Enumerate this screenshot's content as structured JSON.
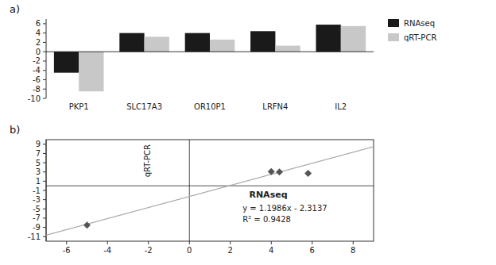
{
  "chart_data": [
    {
      "type": "bar",
      "title": "a)",
      "categories": [
        "PKP1",
        "SLC17A3",
        "OR10P1",
        "LRFN4",
        "IL2"
      ],
      "series": [
        {
          "name": "RNAseq",
          "color": "#1a1a1a",
          "values": [
            -4.5,
            4.0,
            4.0,
            4.4,
            5.8
          ]
        },
        {
          "name": "qRT-PCR",
          "color": "#c8c8c8",
          "values": [
            -8.5,
            3.2,
            2.6,
            1.3,
            5.5
          ]
        }
      ],
      "ylim": [
        -10,
        7
      ],
      "yticks": [
        -10,
        -8,
        -6,
        -4,
        -2,
        0,
        2,
        4,
        6
      ],
      "legend": "right"
    },
    {
      "type": "scatter",
      "title": "b)",
      "x_label": "RNAseq",
      "y_label": "qRT-PCR",
      "annotations": [
        "y = 1.1986x - 2.3137",
        "R² = 0.9428"
      ],
      "series": [
        {
          "type": "scatter",
          "color": "#555555",
          "marker": "diamond",
          "x": [
            -5.0,
            4.0,
            4.4,
            5.8
          ],
          "values": [
            -8.5,
            3.1,
            3.0,
            2.7
          ]
        },
        {
          "type": "line",
          "color": "#aaaaaa",
          "x": [
            -7,
            9
          ],
          "values": [
            -10.7039,
            8.4737
          ]
        }
      ],
      "xlim": [
        -7,
        9
      ],
      "ylim": [
        -12,
        10
      ],
      "xticks": [
        -6,
        -4,
        -2,
        0,
        2,
        4,
        6,
        8
      ],
      "yticks": [
        -11,
        -9,
        -7,
        -5,
        -3,
        -1,
        1,
        3,
        5,
        7,
        9
      ]
    }
  ]
}
